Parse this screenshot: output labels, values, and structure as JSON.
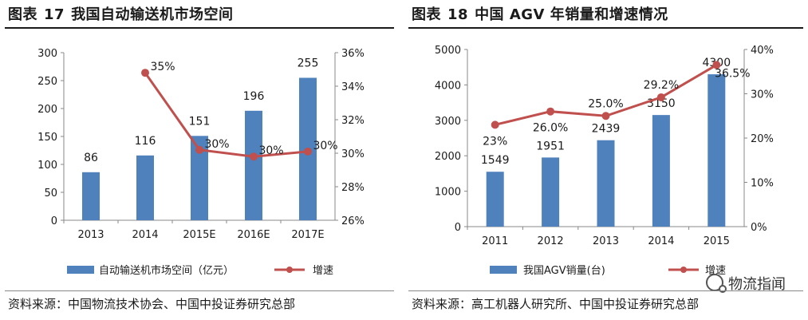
{
  "left": {
    "title_prefix": "图表",
    "title_number": "17",
    "title_text": "我国自动输送机市场空间",
    "source": "资料来源：中国物流技术协会、中国中投证券研究总部"
  },
  "right": {
    "title_prefix": "图表",
    "title_number": "18",
    "title_text": "中国 AGV 年销量和增速情况",
    "source": "资料来源：高工机器人研究所、中国中投证券研究总部"
  },
  "watermark": "物流指闻",
  "colors": {
    "bar": "#4F81BD",
    "line": "#C0504D",
    "axis": "#888888",
    "text": "#1a1a1a"
  },
  "chart_data": [
    {
      "type": "bar+line",
      "title": "我国自动输送机市场空间",
      "categories": [
        "2013",
        "2014",
        "2015E",
        "2016E",
        "2017E"
      ],
      "series": [
        {
          "name": "自动输送机市场空间（亿元）",
          "type": "bar",
          "axis": "left",
          "values": [
            86,
            116,
            151,
            196,
            255
          ],
          "labels": [
            "86",
            "116",
            "151",
            "196",
            "255"
          ]
        },
        {
          "name": "增速",
          "type": "line",
          "axis": "right",
          "values": [
            null,
            34.8,
            30.2,
            29.8,
            30.1
          ],
          "labels": [
            "",
            "35%",
            "30%",
            "30%",
            "30%"
          ]
        }
      ],
      "y_left": {
        "min": 0,
        "max": 300,
        "ticks": [
          "0",
          "50",
          "100",
          "150",
          "200",
          "250",
          "300"
        ]
      },
      "y_right": {
        "min": 26,
        "max": 36,
        "ticks": [
          "26%",
          "28%",
          "30%",
          "32%",
          "34%",
          "36%"
        ]
      },
      "legend": "bottom"
    },
    {
      "type": "bar+line",
      "title": "中国 AGV 年销量和增速情况",
      "categories": [
        "2011",
        "2012",
        "2013",
        "2014",
        "2015"
      ],
      "series": [
        {
          "name": "我国AGV销量(台)",
          "type": "bar",
          "axis": "left",
          "values": [
            1549,
            1951,
            2439,
            3150,
            4300
          ],
          "labels": [
            "1549",
            "1951",
            "2439",
            "3150",
            "4300"
          ]
        },
        {
          "name": "增速",
          "type": "line",
          "axis": "right",
          "values": [
            23.0,
            26.0,
            25.0,
            29.2,
            36.5
          ],
          "labels": [
            "23%",
            "26.0%",
            "25.0%",
            "29.2%",
            "36.5%"
          ]
        }
      ],
      "y_left": {
        "min": 0,
        "max": 5000,
        "ticks": [
          "0",
          "1000",
          "2000",
          "3000",
          "4000",
          "5000"
        ]
      },
      "y_right": {
        "min": 0,
        "max": 40,
        "ticks": [
          "0%",
          "10%",
          "20%",
          "30%",
          "40%"
        ]
      },
      "legend": "bottom"
    }
  ]
}
